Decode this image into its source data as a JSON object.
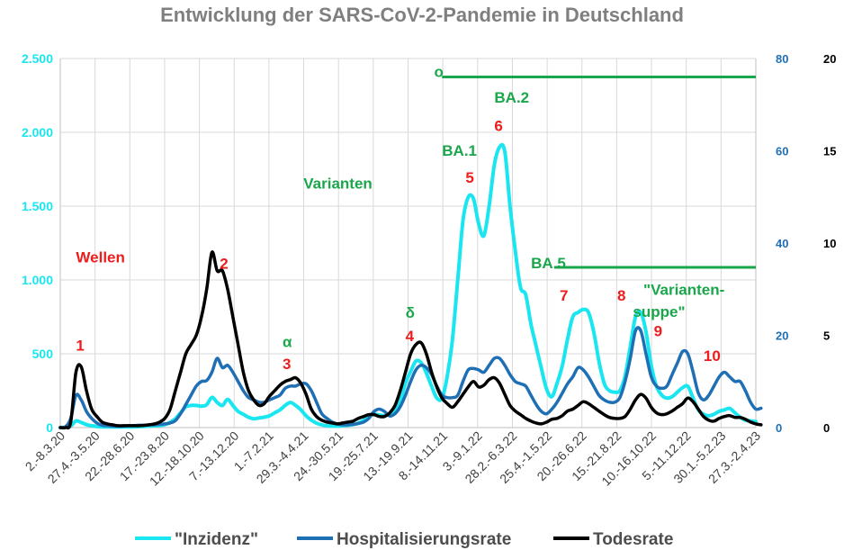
{
  "chart_data": {
    "type": "line",
    "title": "Entwicklung der SARS-CoV-2-Pandemie in Deutschland",
    "x_tick_labels": [
      "2.-8.3.20",
      "27.4.-3.5.20",
      "22.-28.6.20",
      "17.-23.8.20",
      "12.-18.10.20",
      "7.-13.12.20",
      "1.-7.2.21",
      "29.3.-4.4.21",
      "24.-30.5.21",
      "19.-25.7.21",
      "13.-19.9.21",
      "8.-14.11.21",
      "3.-9.1.22",
      "28.2.-6.3.22",
      "25.4.-1.5.22",
      "20.-26.6.22",
      "15.-21.8.22",
      "10.-16.10.22",
      "5.-11.12.22",
      "30.1.-5.2.23",
      "27.3.-2.4.23"
    ],
    "axes": {
      "left": {
        "series": "\"Inzidenz\"",
        "range": [
          0,
          2500
        ],
        "ticks": [
          "0",
          "500",
          "1.000",
          "1.500",
          "2.000",
          "2.500"
        ],
        "tick_values": [
          0,
          500,
          1000,
          1500,
          2000,
          2500
        ],
        "color": "#19e6f0"
      },
      "right1": {
        "series": "Hospitalisierungsrate",
        "range": [
          0,
          80
        ],
        "ticks": [
          "0",
          "20",
          "40",
          "60",
          "80"
        ],
        "tick_values": [
          0,
          20,
          40,
          60,
          80
        ],
        "color": "#1f6fb4"
      },
      "right2": {
        "series": "Todesrate",
        "range": [
          0,
          20
        ],
        "ticks": [
          "0",
          "5",
          "10",
          "15",
          "20"
        ],
        "tick_values": [
          0,
          5,
          10,
          15,
          20
        ],
        "color": "#000000"
      }
    },
    "grid": true,
    "legend_position": "bottom",
    "series": [
      {
        "name": "\"Inzidenz\"",
        "axis": "left",
        "color": "#19e6f0",
        "values": [
          0,
          2,
          10,
          45,
          35,
          20,
          12,
          8,
          5,
          5,
          4,
          4,
          4,
          5,
          5,
          6,
          8,
          10,
          12,
          14,
          20,
          35,
          60,
          100,
          140,
          150,
          150,
          145,
          155,
          205,
          170,
          150,
          190,
          150,
          110,
          90,
          70,
          60,
          65,
          70,
          80,
          100,
          120,
          150,
          170,
          150,
          120,
          80,
          50,
          30,
          18,
          12,
          10,
          10,
          12,
          15,
          20,
          30,
          50,
          75,
          90,
          85,
          80,
          90,
          110,
          180,
          300,
          380,
          450,
          440,
          370,
          280,
          200,
          200,
          350,
          600,
          1000,
          1400,
          1560,
          1550,
          1380,
          1300,
          1500,
          1780,
          1900,
          1870,
          1500,
          1200,
          950,
          900,
          700,
          550,
          400,
          260,
          210,
          300,
          420,
          600,
          750,
          780,
          800,
          780,
          650,
          450,
          300,
          250,
          240,
          250,
          350,
          550,
          750,
          780,
          650,
          420,
          280,
          220,
          200,
          210,
          240,
          270,
          280,
          200,
          120,
          90,
          80,
          90,
          110,
          120,
          130,
          100,
          70,
          50,
          45,
          40
        ]
      },
      {
        "name": "Hospitalisierungsrate",
        "axis": "right1",
        "color": "#1f6fb4",
        "values": [
          0,
          0.2,
          2,
          7,
          6,
          3.5,
          2,
          1,
          0.5,
          0.4,
          0.3,
          0.3,
          0.3,
          0.4,
          0.4,
          0.5,
          0.5,
          0.6,
          0.6,
          0.7,
          0.8,
          1,
          1.5,
          3,
          5,
          7,
          9,
          10,
          10.2,
          12,
          15,
          13,
          13.5,
          12,
          10,
          8,
          6.5,
          6,
          5.5,
          5.5,
          6,
          6.5,
          7,
          8.5,
          9,
          9,
          9.5,
          9.5,
          8,
          5.5,
          3,
          2,
          1.2,
          0.8,
          0.6,
          0.6,
          0.7,
          0.9,
          1.2,
          2,
          3.5,
          4,
          3.5,
          2.5,
          3,
          4.5,
          7,
          10,
          12.5,
          13.5,
          13,
          11.5,
          9,
          7,
          6.5,
          6.5,
          7,
          10,
          12.5,
          12.8,
          12.5,
          12,
          13.5,
          15,
          15,
          13.5,
          11.5,
          10,
          9.5,
          9,
          7,
          5,
          3.5,
          3,
          4,
          5.5,
          7.5,
          9.5,
          11,
          13,
          12.5,
          11,
          9,
          7,
          6,
          5.5,
          5.5,
          6.5,
          10,
          15,
          21,
          21,
          16,
          11,
          9,
          8.5,
          9,
          11.5,
          14,
          16.5,
          16,
          12,
          7.5,
          6,
          7,
          9,
          11,
          12,
          11,
          10,
          10,
          8,
          5.5,
          4,
          4.2
        ]
      },
      {
        "name": "Todesrate",
        "axis": "right2",
        "color": "#000000",
        "values": [
          0,
          0,
          0.3,
          3,
          3.3,
          2,
          1,
          0.6,
          0.3,
          0.2,
          0.15,
          0.1,
          0.1,
          0.1,
          0.1,
          0.1,
          0.12,
          0.15,
          0.2,
          0.3,
          0.5,
          1,
          2,
          3,
          4,
          4.5,
          5,
          6,
          7.5,
          9.5,
          8.5,
          8.5,
          7.5,
          6,
          4.5,
          3,
          2,
          1.5,
          1.2,
          1.3,
          1.7,
          2,
          2.3,
          2.5,
          2.6,
          2.7,
          2.4,
          1.8,
          1,
          0.6,
          0.4,
          0.3,
          0.25,
          0.2,
          0.25,
          0.3,
          0.35,
          0.5,
          0.6,
          0.7,
          0.7,
          0.6,
          0.6,
          0.8,
          1.2,
          2,
          3,
          4,
          4.5,
          4.6,
          4,
          3,
          2.2,
          1.6,
          1.3,
          1.1,
          1.4,
          1.8,
          2.2,
          2.5,
          2.2,
          2.3,
          2.6,
          2.7,
          2.4,
          1.8,
          1.2,
          0.9,
          0.7,
          0.5,
          0.35,
          0.25,
          0.2,
          0.3,
          0.45,
          0.5,
          0.65,
          0.9,
          1,
          1.2,
          1.4,
          1.3,
          1.1,
          0.9,
          0.7,
          0.55,
          0.5,
          0.5,
          0.6,
          1,
          1.5,
          1.8,
          1.6,
          1.1,
          0.8,
          0.7,
          0.75,
          0.9,
          1.1,
          1.3,
          1.6,
          1.4,
          1,
          0.6,
          0.4,
          0.35,
          0.5,
          0.6,
          0.65,
          0.55,
          0.55,
          0.45,
          0.3,
          0.2,
          0.15
        ]
      }
    ],
    "annotations": [
      {
        "text": "Wellen",
        "color": "red",
        "t": 3,
        "y": 1120
      },
      {
        "text": "1",
        "color": "red",
        "t": 3,
        "y": 520
      },
      {
        "text": "2",
        "color": "red",
        "t": 30.5,
        "y": 1075
      },
      {
        "text": "α",
        "color": "green",
        "t": 42.5,
        "y": 545
      },
      {
        "text": "3",
        "color": "red",
        "t": 42.5,
        "y": 395
      },
      {
        "text": "Varianten",
        "color": "green",
        "t": 46.5,
        "y": 1620
      },
      {
        "text": "δ",
        "color": "green",
        "t": 66,
        "y": 745
      },
      {
        "text": "4",
        "color": "red",
        "t": 66,
        "y": 585
      },
      {
        "text": "BA.1",
        "color": "green",
        "t": 73,
        "y": 1840
      },
      {
        "text": "5",
        "color": "red",
        "t": 77.5,
        "y": 1660
      },
      {
        "text": "BA.2",
        "color": "green",
        "t": 83,
        "y": 2200
      },
      {
        "text": "6",
        "color": "red",
        "t": 83,
        "y": 2010
      },
      {
        "text": "o",
        "color": "green",
        "t": 71.5,
        "y": 2375
      },
      {
        "text": "BA.5",
        "color": "green",
        "t": 90,
        "y": 1080
      },
      {
        "text": "7",
        "color": "red",
        "t": 95.5,
        "y": 860
      },
      {
        "text": "8",
        "color": "red",
        "t": 106.5,
        "y": 860
      },
      {
        "text": "\"Varianten-",
        "color": "green",
        "t": 111.5,
        "y": 900
      },
      {
        "text": "suppe\"",
        "color": "green",
        "t": 109.5,
        "y": 750
      },
      {
        "text": "9",
        "color": "red",
        "t": 113.5,
        "y": 620
      },
      {
        "text": "10",
        "color": "red",
        "t": 123,
        "y": 450
      }
    ],
    "variant_lines": [
      {
        "start_t": 73,
        "y": 2375
      },
      {
        "start_t": 94.5,
        "y": 1085
      }
    ]
  }
}
